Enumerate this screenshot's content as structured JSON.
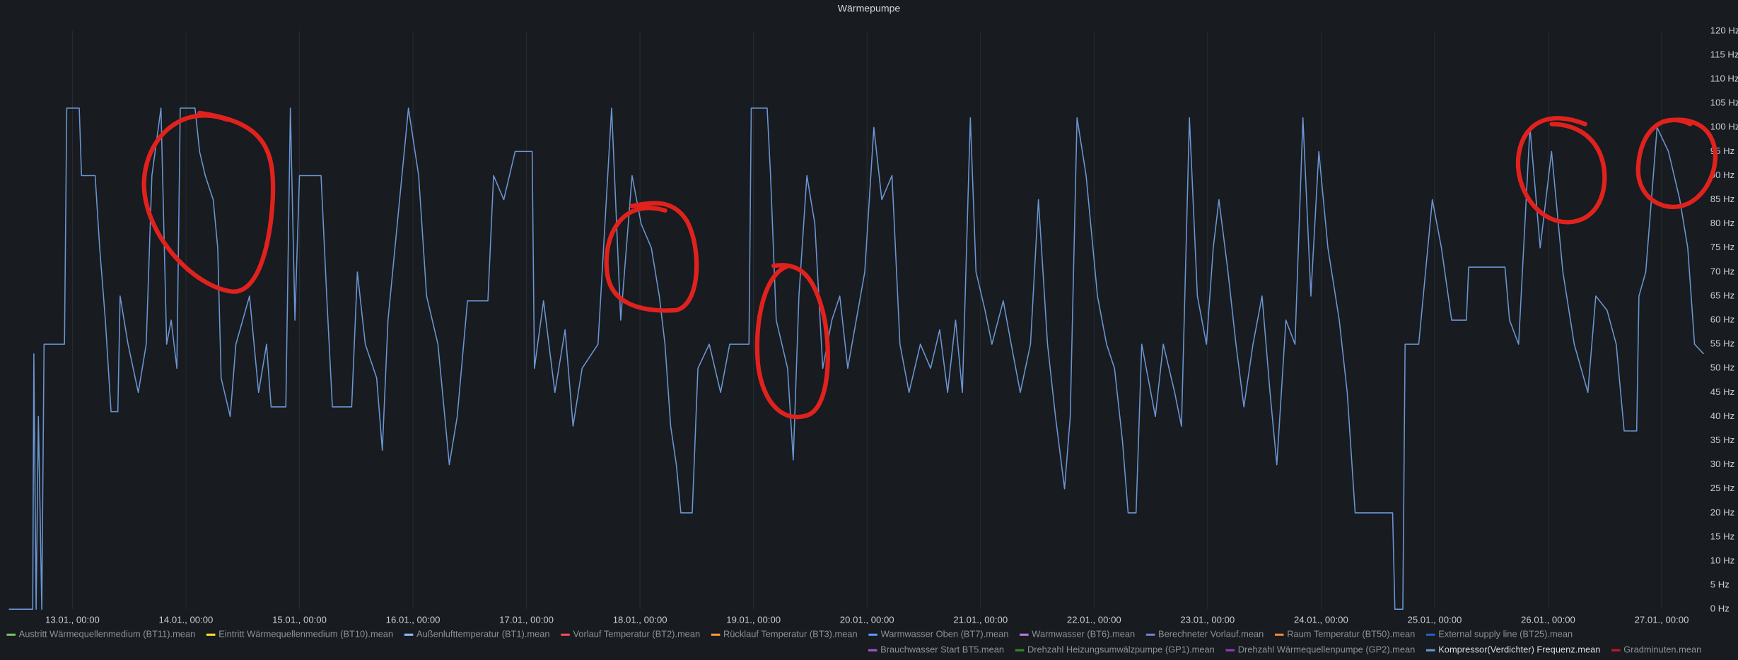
{
  "chart_data": {
    "type": "line",
    "title": "Wärmepumpe",
    "x": [
      0.44,
      0.65,
      0.66,
      0.68,
      0.7,
      0.73,
      0.75,
      0.93,
      0.95,
      1.06,
      1.08,
      1.2,
      1.24,
      1.29,
      1.34,
      1.4,
      1.42,
      1.49,
      1.58,
      1.65,
      1.7,
      1.78,
      1.83,
      1.87,
      1.92,
      1.95,
      2.08,
      2.12,
      2.17,
      2.24,
      2.28,
      2.31,
      2.39,
      2.44,
      2.56,
      2.64,
      2.71,
      2.75,
      2.88,
      2.92,
      2.96,
      3.0,
      3.19,
      3.24,
      3.29,
      3.46,
      3.51,
      3.58,
      3.68,
      3.73,
      3.78,
      3.96,
      4.05,
      4.12,
      4.22,
      4.32,
      4.39,
      4.48,
      4.66,
      4.71,
      4.8,
      4.9,
      5.05,
      5.07,
      5.15,
      5.25,
      5.34,
      5.41,
      5.49,
      5.63,
      5.75,
      5.83,
      5.93,
      6.01,
      6.1,
      6.17,
      6.22,
      6.27,
      6.32,
      6.36,
      6.46,
      6.51,
      6.61,
      6.71,
      6.79,
      6.96,
      6.98,
      7.12,
      7.15,
      7.2,
      7.3,
      7.35,
      7.4,
      7.47,
      7.54,
      7.61,
      7.69,
      7.76,
      7.83,
      7.98,
      8.06,
      8.13,
      8.22,
      8.29,
      8.37,
      8.47,
      8.56,
      8.64,
      8.71,
      8.78,
      8.84,
      8.91,
      8.96,
      9.04,
      9.1,
      9.2,
      9.27,
      9.35,
      9.44,
      9.51,
      9.59,
      9.66,
      9.74,
      9.79,
      9.85,
      9.93,
      10.03,
      10.11,
      10.18,
      10.25,
      10.3,
      10.37,
      10.42,
      10.54,
      10.61,
      10.71,
      10.77,
      10.84,
      10.91,
      10.99,
      11.05,
      11.1,
      11.18,
      11.25,
      11.32,
      11.4,
      11.48,
      11.55,
      11.61,
      11.69,
      11.77,
      11.84,
      11.91,
      11.98,
      12.06,
      12.16,
      12.23,
      12.3,
      12.63,
      12.65,
      12.72,
      12.74,
      12.86,
      12.98,
      13.06,
      13.15,
      13.28,
      13.3,
      13.62,
      13.66,
      13.74,
      13.84,
      13.93,
      14.03,
      14.13,
      14.23,
      14.35,
      14.42,
      14.52,
      14.6,
      14.67,
      14.78,
      14.8,
      14.86,
      14.96,
      15.06,
      15.16,
      15.23,
      15.29,
      15.37
    ],
    "series": [
      {
        "name": "Austritt Wärmequellenmedium (BT11).mean",
        "color": "#73bf69"
      },
      {
        "name": "Eintritt Wärmequellenmedium (BT10).mean",
        "color": "#fade2a"
      },
      {
        "name": "Außenlufttemperatur (BT1).mean",
        "color": "#8ab8ff"
      },
      {
        "name": "Vorlauf Temperatur (BT2).mean",
        "color": "#f2495c"
      },
      {
        "name": "Rücklauf Temperatur (BT3).mean",
        "color": "#ff9830"
      },
      {
        "name": "Warmwasser Oben (BT7).mean",
        "color": "#5794f2"
      },
      {
        "name": "Warmwasser (BT6).mean",
        "color": "#b877d9"
      },
      {
        "name": "Berechneter Vorlauf.mean",
        "color": "#6e7fc9"
      },
      {
        "name": "Raum Temperatur (BT50).mean",
        "color": "#ef843c"
      },
      {
        "name": "External supply line (BT25).mean",
        "color": "#1f60c4"
      },
      {
        "name": "Brauchwasser Start BT5.mean",
        "color": "#a352cc"
      },
      {
        "name": "Drehzahl Heizungsumwälzpumpe (GP1).mean",
        "color": "#37872d"
      },
      {
        "name": "Drehzahl Wärmequellenpumpe (GP2).mean",
        "color": "#8f3bb8"
      },
      {
        "name": "Kompressor(Verdichter) Frequenz.mean",
        "color": "#6a95d2",
        "values": [
          0,
          0,
          53,
          0,
          40,
          0,
          55,
          55,
          104,
          104,
          90,
          90,
          75,
          60,
          41,
          41,
          65,
          55,
          45,
          55,
          90,
          104,
          55,
          60,
          50,
          104,
          104,
          95,
          90,
          85,
          75,
          48,
          40,
          55,
          65,
          45,
          55,
          42,
          42,
          104,
          60,
          90,
          90,
          65,
          42,
          42,
          70,
          55,
          48,
          33,
          60,
          104,
          90,
          65,
          55,
          30,
          40,
          64,
          64,
          90,
          85,
          95,
          95,
          50,
          64,
          45,
          58,
          38,
          50,
          55,
          104,
          60,
          90,
          80,
          75,
          65,
          55,
          38,
          30,
          20,
          20,
          50,
          55,
          45,
          55,
          55,
          104,
          104,
          90,
          60,
          50,
          31,
          65,
          90,
          80,
          50,
          60,
          65,
          50,
          70,
          100,
          85,
          90,
          55,
          45,
          55,
          50,
          58,
          45,
          60,
          45,
          102,
          70,
          62,
          55,
          64,
          55,
          45,
          55,
          85,
          55,
          40,
          25,
          40,
          102,
          90,
          65,
          55,
          50,
          35,
          20,
          20,
          55,
          40,
          55,
          45,
          38,
          102,
          65,
          55,
          75,
          85,
          70,
          55,
          42,
          55,
          65,
          45,
          30,
          60,
          55,
          102,
          65,
          95,
          75,
          60,
          45,
          20,
          20,
          0,
          0,
          55,
          55,
          85,
          75,
          60,
          60,
          71,
          71,
          60,
          55,
          100,
          75,
          95,
          70,
          55,
          45,
          65,
          62,
          55,
          37,
          37,
          65,
          70,
          100,
          95,
          85,
          75,
          55,
          53
        ]
      },
      {
        "name": "Gradminuten.mean",
        "color": "#c4162a"
      }
    ],
    "xlim": [
      0.44,
      15.37
    ],
    "xticks": [
      {
        "value": 1,
        "label": "13.01., 00:00"
      },
      {
        "value": 2,
        "label": "14.01., 00:00"
      },
      {
        "value": 3,
        "label": "15.01., 00:00"
      },
      {
        "value": 4,
        "label": "16.01., 00:00"
      },
      {
        "value": 5,
        "label": "17.01., 00:00"
      },
      {
        "value": 6,
        "label": "18.01., 00:00"
      },
      {
        "value": 7,
        "label": "19.01., 00:00"
      },
      {
        "value": 8,
        "label": "20.01., 00:00"
      },
      {
        "value": 9,
        "label": "21.01., 00:00"
      },
      {
        "value": 10,
        "label": "22.01., 00:00"
      },
      {
        "value": 11,
        "label": "23.01., 00:00"
      },
      {
        "value": 12,
        "label": "24.01., 00:00"
      },
      {
        "value": 13,
        "label": "25.01., 00:00"
      },
      {
        "value": 14,
        "label": "26.01., 00:00"
      },
      {
        "value": 15,
        "label": "27.01., 00:00"
      }
    ],
    "ylim": [
      0,
      120
    ],
    "yticks": [
      {
        "value": 0,
        "label": "0 Hz"
      },
      {
        "value": 5,
        "label": "5 Hz"
      },
      {
        "value": 10,
        "label": "10 Hz"
      },
      {
        "value": 15,
        "label": "15 Hz"
      },
      {
        "value": 20,
        "label": "20 Hz"
      },
      {
        "value": 25,
        "label": "25 Hz"
      },
      {
        "value": 30,
        "label": "30 Hz"
      },
      {
        "value": 35,
        "label": "35 Hz"
      },
      {
        "value": 40,
        "label": "40 Hz"
      },
      {
        "value": 45,
        "label": "45 Hz"
      },
      {
        "value": 50,
        "label": "50 Hz"
      },
      {
        "value": 55,
        "label": "55 Hz"
      },
      {
        "value": 60,
        "label": "60 Hz"
      },
      {
        "value": 65,
        "label": "65 Hz"
      },
      {
        "value": 70,
        "label": "70 Hz"
      },
      {
        "value": 75,
        "label": "75 Hz"
      },
      {
        "value": 80,
        "label": "80 Hz"
      },
      {
        "value": 85,
        "label": "85 Hz"
      },
      {
        "value": 90,
        "label": "90 Hz"
      },
      {
        "value": 95,
        "label": "95 Hz"
      },
      {
        "value": 100,
        "label": "100 Hz"
      },
      {
        "value": 105,
        "label": "105 Hz"
      },
      {
        "value": 110,
        "label": "110 Hz"
      },
      {
        "value": 115,
        "label": "115 Hz"
      },
      {
        "value": 120,
        "label": "120 Hz"
      }
    ],
    "grid": "x",
    "legend": "bottom"
  }
}
